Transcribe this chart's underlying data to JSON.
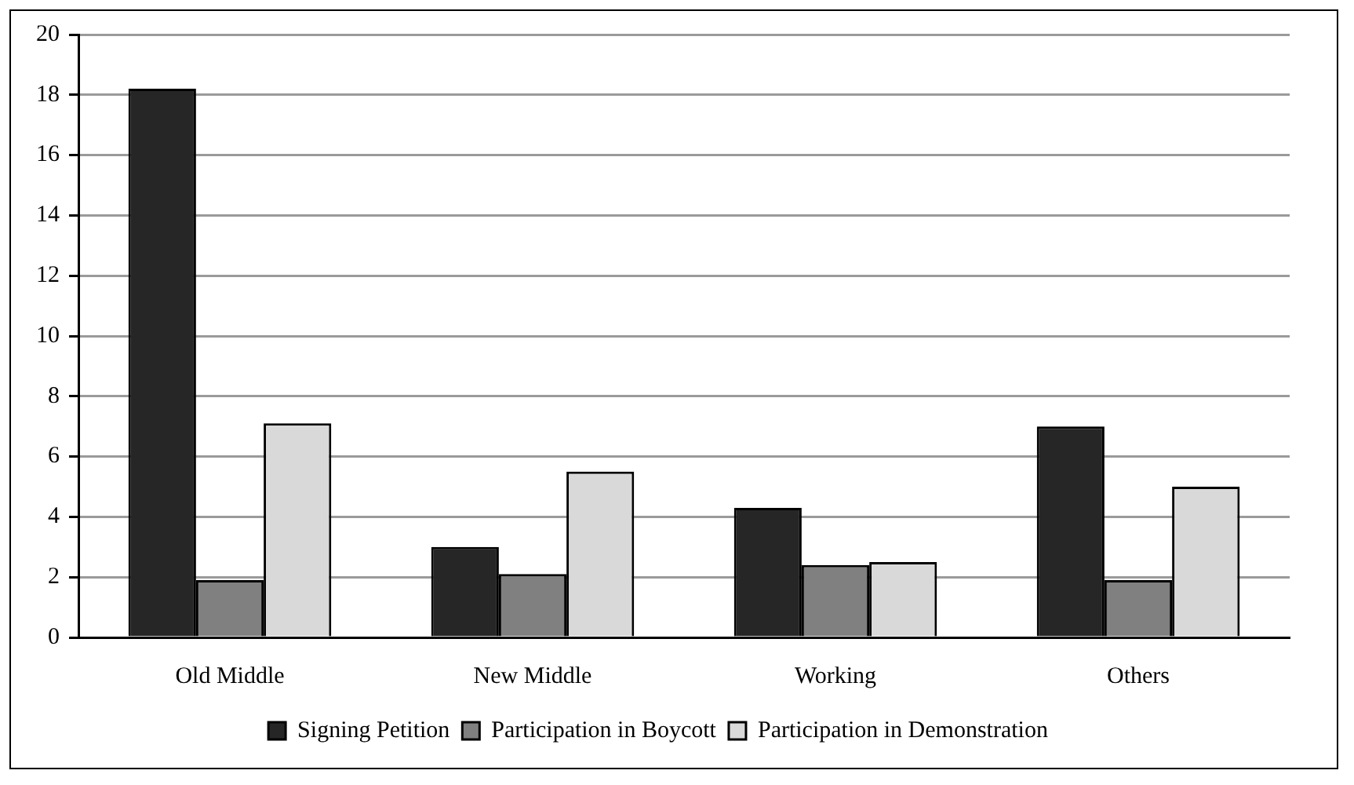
{
  "chart_data": {
    "type": "bar",
    "categories": [
      "Old Middle",
      "New Middle",
      "Working",
      "Others"
    ],
    "series": [
      {
        "name": "Signing Petition",
        "color": "#262626",
        "values": [
          18.2,
          3.0,
          4.3,
          7.0
        ]
      },
      {
        "name": "Participation in Boycott",
        "color": "#808080",
        "values": [
          1.9,
          2.1,
          2.4,
          1.9
        ]
      },
      {
        "name": "Participation in Demonstration",
        "color": "#d9d9d9",
        "values": [
          7.1,
          5.5,
          2.5,
          5.0
        ]
      }
    ],
    "ylim": [
      0,
      20
    ],
    "yticks": [
      0,
      2,
      4,
      6,
      8,
      10,
      12,
      14,
      16,
      18,
      20
    ],
    "grid": "y",
    "legend": "bottom"
  }
}
